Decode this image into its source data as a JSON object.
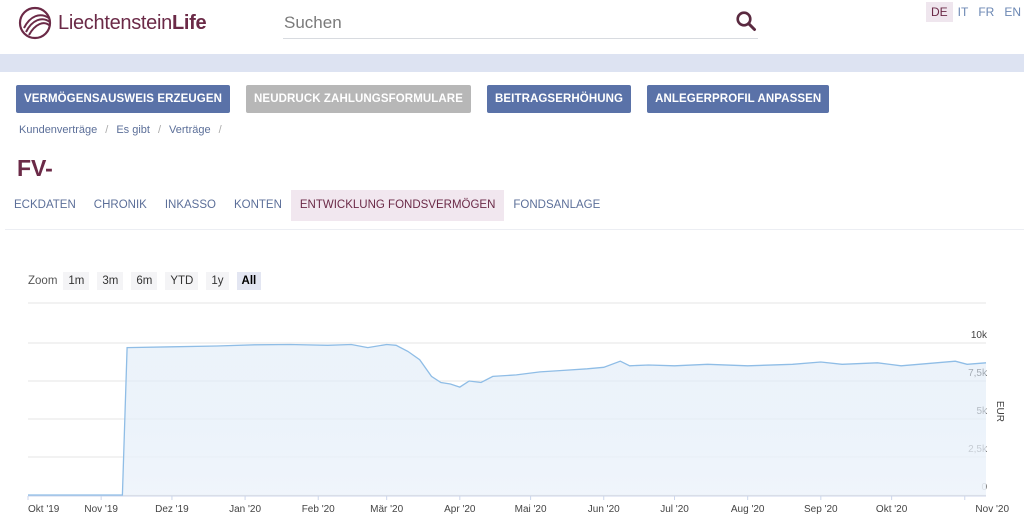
{
  "header": {
    "logo_light": "Liechtenstein",
    "logo_bold": "Life",
    "search_placeholder": "Suchen",
    "languages": [
      "DE",
      "IT",
      "FR",
      "EN"
    ],
    "active_language": "DE"
  },
  "actions": {
    "btn1": "VERMÖGENSAUSWEIS ERZEUGEN",
    "btn2": "NEUDRUCK ZAHLUNGSFORMULARE",
    "btn3": "BEITRAGSERHÖHUNG",
    "btn4": "ANLEGERPROFIL ANPASSEN"
  },
  "breadcrumb": [
    "Kundenverträge",
    "Es gibt",
    "Verträge"
  ],
  "contract_title": "FV-",
  "tabs": [
    "ECKDATEN",
    "CHRONIK",
    "INKASSO",
    "KONTEN",
    "ENTWICKLUNG FONDSVERMÖGEN",
    "FONDSANLAGE"
  ],
  "active_tab": 4,
  "zoom": {
    "label": "Zoom",
    "options": [
      "1m",
      "3m",
      "6m",
      "YTD",
      "1y",
      "All"
    ],
    "active": "All"
  },
  "colors": {
    "accent": "#6b2a47",
    "button": "#5a72a8",
    "line": "#8fbde6"
  },
  "chart_data": {
    "type": "area",
    "ylabel": "EUR",
    "ylim": [
      0,
      10000
    ],
    "y_ticks": [
      "0",
      "2,5k",
      "5k",
      "7,5k",
      "10k"
    ],
    "x_ticks": [
      "Okt '19",
      "Nov '19",
      "Dez '19",
      "Jan '20",
      "Feb '20",
      "Mär '20",
      "Apr '20",
      "Mai '20",
      "Jun '20",
      "Jul '20",
      "Aug '20",
      "Sep '20",
      "Okt '20",
      "Nov '20"
    ],
    "x_range": [
      "2019-10-01",
      "2020-11-10"
    ],
    "series": [
      {
        "points": [
          [
            "2019-10-01",
            0
          ],
          [
            "2019-11-10",
            0
          ],
          [
            "2019-11-12",
            9700
          ],
          [
            "2019-12-01",
            9750
          ],
          [
            "2019-12-20",
            9800
          ],
          [
            "2020-01-05",
            9880
          ],
          [
            "2020-01-20",
            9900
          ],
          [
            "2020-02-05",
            9850
          ],
          [
            "2020-02-15",
            9900
          ],
          [
            "2020-02-22",
            9700
          ],
          [
            "2020-03-01",
            9900
          ],
          [
            "2020-03-05",
            9850
          ],
          [
            "2020-03-10",
            9450
          ],
          [
            "2020-03-15",
            8900
          ],
          [
            "2020-03-20",
            7800
          ],
          [
            "2020-03-24",
            7400
          ],
          [
            "2020-03-28",
            7300
          ],
          [
            "2020-04-01",
            7100
          ],
          [
            "2020-04-05",
            7500
          ],
          [
            "2020-04-10",
            7400
          ],
          [
            "2020-04-15",
            7800
          ],
          [
            "2020-04-25",
            7900
          ],
          [
            "2020-05-05",
            8100
          ],
          [
            "2020-05-15",
            8200
          ],
          [
            "2020-05-25",
            8300
          ],
          [
            "2020-06-01",
            8400
          ],
          [
            "2020-06-08",
            8800
          ],
          [
            "2020-06-12",
            8500
          ],
          [
            "2020-06-20",
            8550
          ],
          [
            "2020-07-01",
            8500
          ],
          [
            "2020-07-15",
            8600
          ],
          [
            "2020-08-01",
            8500
          ],
          [
            "2020-08-20",
            8600
          ],
          [
            "2020-09-01",
            8750
          ],
          [
            "2020-09-10",
            8600
          ],
          [
            "2020-09-25",
            8700
          ],
          [
            "2020-10-05",
            8500
          ],
          [
            "2020-10-20",
            8700
          ],
          [
            "2020-10-28",
            8800
          ],
          [
            "2020-11-02",
            8600
          ],
          [
            "2020-11-10",
            8700
          ]
        ]
      }
    ]
  }
}
